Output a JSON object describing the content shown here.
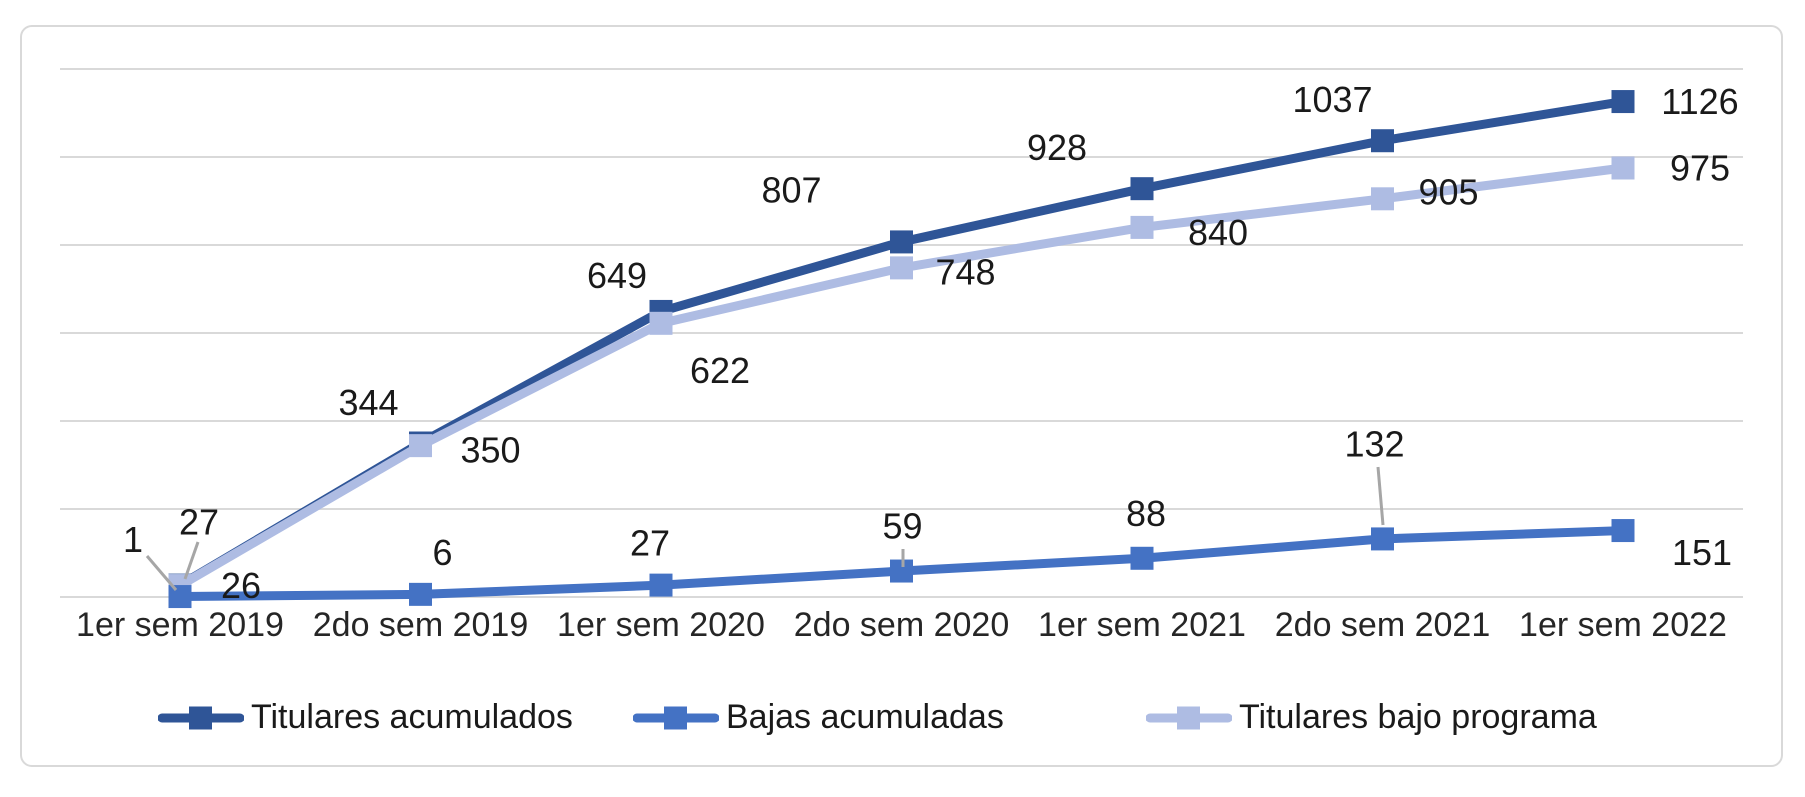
{
  "chart_data": {
    "type": "line",
    "categories": [
      "1er sem 2019",
      "2do sem 2019",
      "1er sem 2020",
      "2do sem 2020",
      "1er sem 2021",
      "2do sem 2021",
      "1er sem 2022"
    ],
    "series": [
      {
        "name": "Titulares acumulados",
        "color": "#2F5597",
        "values": [
          27,
          350,
          649,
          807,
          928,
          1037,
          1126
        ]
      },
      {
        "name": "Bajas acumuladas",
        "color": "#4472C4",
        "values": [
          1,
          6,
          27,
          59,
          88,
          132,
          151
        ]
      },
      {
        "name": "Titulares bajo programa",
        "color": "#AEBCE3",
        "values": [
          26,
          344,
          622,
          748,
          840,
          905,
          975
        ]
      }
    ],
    "data_labels": [
      [
        "27",
        "350",
        "649",
        "807",
        "928",
        "1037",
        "1126"
      ],
      [
        "1",
        "6",
        "27",
        "59",
        "88",
        "132",
        "151"
      ],
      [
        "26",
        "344",
        "622",
        "748",
        "840",
        "905",
        "975"
      ]
    ],
    "ylim": [
      0,
      1200
    ],
    "gridline_step": 200,
    "grid": "horizontal",
    "gridline_color": "#D9D9D9",
    "leader_line_color": "#A6A6A6",
    "data_label_color": "#1a1a1a",
    "legend_position": "bottom",
    "marker_shape": "square"
  }
}
